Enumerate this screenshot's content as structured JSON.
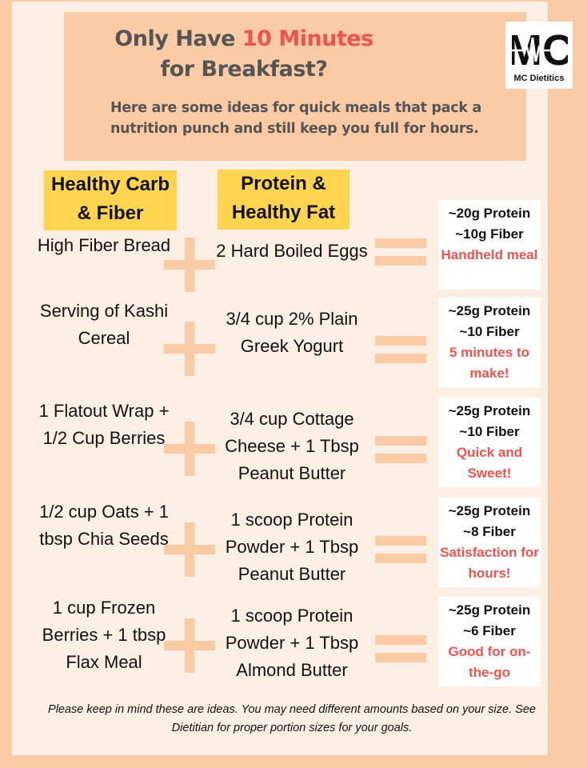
{
  "header": {
    "title_pre": "Only Have ",
    "title_accent": "10 Minutes",
    "title_post": " for Breakfast?",
    "subtitle": "Here are some ideas for quick meals that pack a nutrition punch and still keep you full for hours."
  },
  "logo": {
    "mark": "MC",
    "text": "MC Dietitics",
    "icon": "heartbeat-icon"
  },
  "colors": {
    "accent": "#ef5350",
    "highlight": "#ffd54f",
    "peach": "#fbcba5"
  },
  "columns": {
    "carb_fiber": "Healthy Carb & Fiber",
    "protein_fat": "Protein & Healthy Fat"
  },
  "meals": [
    {
      "carb": "High Fiber Bread",
      "protein": "2 Hard Boiled Eggs",
      "protein_amount": "~20g Protein",
      "fiber_amount": "~10g Fiber",
      "note": "Handheld meal"
    },
    {
      "carb": "Serving of Kashi Cereal",
      "protein": "3/4 cup 2% Plain Greek Yogurt",
      "protein_amount": "~25g Protein",
      "fiber_amount": "~10 Fiber",
      "note": "5 minutes to make!"
    },
    {
      "carb": "1 Flatout Wrap + 1/2 Cup Berries",
      "protein": "3/4 cup Cottage Cheese + 1 Tbsp Peanut Butter",
      "protein_amount": "~25g Protein",
      "fiber_amount": "~10 Fiber",
      "note": "Quick and Sweet!"
    },
    {
      "carb": "1/2 cup Oats + 1 tbsp Chia Seeds",
      "protein": "1 scoop Protein Powder + 1 Tbsp Peanut Butter",
      "protein_amount": "~25g Protein",
      "fiber_amount": "~8 Fiber",
      "note": "Satisfaction for hours!"
    },
    {
      "carb": "1 cup Frozen Berries + 1 tbsp Flax Meal",
      "protein": "1 scoop Protein Powder + 1 Tbsp Almond Butter",
      "protein_amount": "~25g Protein",
      "fiber_amount": "~6 Fiber",
      "note": "Good for on-the-go"
    }
  ],
  "footer": "Please keep in mind these are ideas. You may need different amounts based on your size. See Dietitian for proper portion sizes for your goals."
}
